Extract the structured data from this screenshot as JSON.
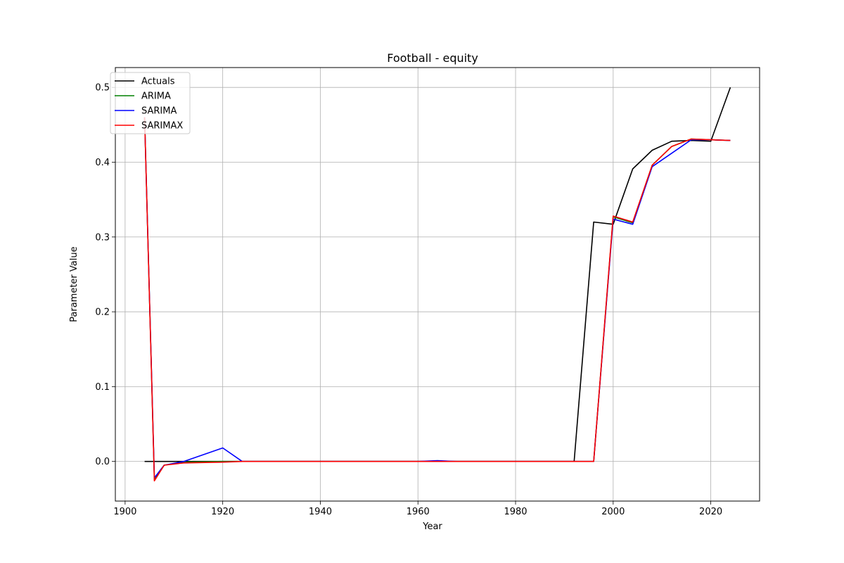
{
  "chart_data": {
    "type": "line",
    "title": "Football - equity",
    "xlabel": "Year",
    "ylabel": "Parameter Value",
    "xlim": [
      1898,
      2030
    ],
    "ylim": [
      -0.053,
      0.5265
    ],
    "xticks": [
      1900,
      1920,
      1940,
      1960,
      1980,
      2000,
      2020
    ],
    "xtick_labels": [
      "1900",
      "1920",
      "1940",
      "1960",
      "1980",
      "2000",
      "2020"
    ],
    "yticks": [
      0.0,
      0.1,
      0.2,
      0.3,
      0.4,
      0.5
    ],
    "ytick_labels": [
      "0.0",
      "0.1",
      "0.2",
      "0.3",
      "0.4",
      "0.5"
    ],
    "grid": true,
    "legend_position": "upper-left",
    "series": [
      {
        "name": "Actuals",
        "color": "#000000",
        "x": [
          1904,
          1906,
          1908,
          1912,
          1920,
          1924,
          1928,
          1936,
          1948,
          1952,
          1956,
          1960,
          1964,
          1968,
          1972,
          1976,
          1980,
          1984,
          1988,
          1992,
          1996,
          2000,
          2004,
          2008,
          2012,
          2016,
          2020,
          2024
        ],
        "y": [
          0.0,
          0.0,
          0.0,
          0.0,
          0.0,
          0.0,
          0.0,
          0.0,
          0.0,
          0.0,
          0.0,
          0.0,
          0.0,
          0.0,
          0.0,
          0.0,
          0.0,
          0.0,
          0.0,
          0.0,
          0.32,
          0.317,
          0.391,
          0.416,
          0.428,
          0.429,
          0.428,
          0.5
        ]
      },
      {
        "name": "ARIMA",
        "color": "#008000",
        "x": [
          1904,
          1906,
          1908,
          1912,
          1920,
          1924,
          1928,
          1936,
          1948,
          1952,
          1956,
          1960,
          1964,
          1968,
          1972,
          1976,
          1980,
          1984,
          1988,
          1992,
          1996,
          2000,
          2004,
          2008,
          2012,
          2016,
          2020,
          2024
        ],
        "y": [
          0.46,
          -0.025,
          -0.005,
          -0.001,
          0.0,
          0.0,
          0.0,
          0.0,
          0.0,
          0.0,
          0.0,
          0.0,
          0.0,
          0.0,
          0.0,
          0.0,
          0.0,
          0.0,
          0.0,
          0.0,
          0.0,
          0.327,
          0.319,
          0.396,
          0.421,
          0.431,
          0.43,
          0.429
        ]
      },
      {
        "name": "SARIMA",
        "color": "#0000ff",
        "x": [
          1904,
          1906,
          1908,
          1912,
          1920,
          1924,
          1928,
          1936,
          1948,
          1952,
          1956,
          1960,
          1964,
          1968,
          1972,
          1976,
          1980,
          1984,
          1988,
          1992,
          1996,
          2000,
          2004,
          2008,
          2012,
          2016,
          2020,
          2024
        ],
        "y": [
          0.46,
          -0.022,
          -0.005,
          0.0,
          0.018,
          0.0,
          0.0,
          0.0,
          0.0,
          0.0,
          0.0,
          0.0,
          0.001,
          0.0,
          0.0,
          0.0,
          0.0,
          0.0,
          0.0,
          0.0,
          0.0,
          0.324,
          0.317,
          0.394,
          0.412,
          0.43,
          0.43,
          0.429
        ]
      },
      {
        "name": "SARIMAX",
        "color": "#ff0000",
        "x": [
          1904,
          1906,
          1908,
          1912,
          1920,
          1924,
          1928,
          1936,
          1948,
          1952,
          1956,
          1960,
          1964,
          1968,
          1972,
          1976,
          1980,
          1984,
          1988,
          1992,
          1996,
          2000,
          2004,
          2008,
          2012,
          2016,
          2020,
          2024
        ],
        "y": [
          0.46,
          -0.026,
          -0.005,
          -0.002,
          -0.001,
          0.0,
          0.0,
          0.0,
          0.0,
          0.0,
          0.0,
          0.0,
          0.0,
          0.0,
          0.0,
          0.0,
          0.0,
          0.0,
          0.0,
          0.0,
          0.0,
          0.328,
          0.32,
          0.396,
          0.421,
          0.431,
          0.43,
          0.429
        ]
      }
    ]
  }
}
